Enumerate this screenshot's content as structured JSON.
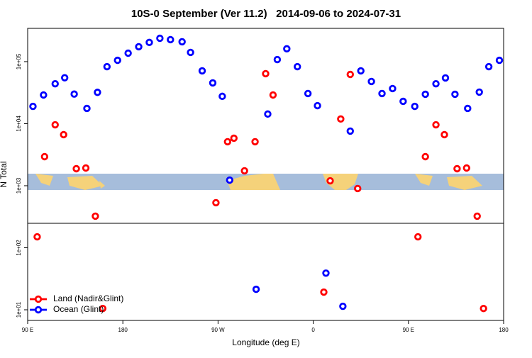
{
  "chart_data": {
    "type": "scatter",
    "title": "10S-0 September (Ver 11.2)   2014-09-06 to 2024-07-31",
    "xlabel": "Longitude (deg E)",
    "ylabel": "N Total",
    "xlim": [
      90,
      540
    ],
    "xticks": [
      {
        "value": 90,
        "label": "90 E"
      },
      180,
      {
        "value": 270,
        "label": "90 W"
      },
      {
        "value": 360,
        "label": "0"
      },
      {
        "value": 450,
        "label": "90 E"
      },
      {
        "value": 540,
        "label": "180"
      }
    ],
    "ylim": [
      6.74,
      344000
    ],
    "yscale": "log",
    "yticks": [
      {
        "value": 10,
        "label": "1e+01"
      },
      {
        "value": 100,
        "label": "1e+02"
      },
      {
        "value": 1000,
        "label": "1e+03"
      },
      {
        "value": 10000,
        "label": "1e+04"
      },
      {
        "value": 100000,
        "label": "1e+05"
      }
    ],
    "hline": 248,
    "legend": "bottom-left",
    "series": [
      {
        "name": "Land (Nadir&Glint)",
        "color": "#ff0000",
        "x": [
          99,
          106,
          116,
          124,
          136,
          145,
          154,
          161,
          268,
          279,
          285,
          295,
          305,
          315,
          322,
          370,
          376,
          386,
          395,
          402,
          459,
          466,
          476,
          484,
          496,
          505,
          515,
          521
        ],
        "values": [
          150,
          2940,
          9600,
          6650,
          1880,
          1930,
          323,
          10.5,
          532,
          5120,
          5830,
          1740,
          5120,
          64000,
          29000,
          19.3,
          1200,
          11900,
          62200,
          900,
          150,
          2940,
          9600,
          6650,
          1880,
          1930,
          323,
          10.5
        ]
      },
      {
        "name": "Ocean (Glint)",
        "color": "#0000ff",
        "x": [
          95,
          105,
          116,
          125,
          134,
          146,
          156,
          165,
          175,
          185,
          195,
          205,
          215,
          225,
          236,
          244,
          255,
          265,
          274,
          281,
          306,
          317,
          326,
          335,
          345,
          355,
          364,
          372,
          388,
          395,
          405,
          415,
          425,
          435,
          445,
          456,
          466,
          476,
          485,
          494,
          506,
          517,
          526,
          536
        ],
        "values": [
          19000,
          29000,
          44000,
          55000,
          30000,
          17600,
          32000,
          83000,
          105000,
          137000,
          174000,
          204000,
          238000,
          226000,
          209000,
          141000,
          71000,
          45400,
          27600,
          1230,
          21.4,
          14300,
          108000,
          161000,
          83000,
          30600,
          19500,
          39,
          11.4,
          7600,
          71000,
          47900,
          30600,
          36800,
          22900,
          19000,
          29800,
          44000,
          54600,
          29800,
          17600,
          32300,
          83000,
          105000
        ]
      }
    ]
  }
}
